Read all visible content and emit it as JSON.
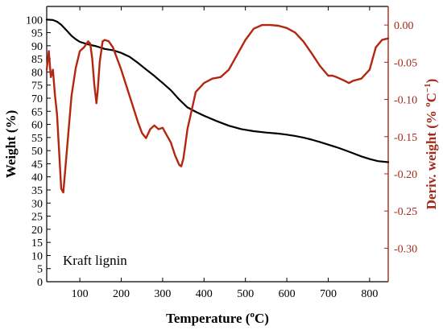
{
  "chart_data": {
    "type": "line",
    "annotation": "Kraft lignin",
    "xlabel": "Temperature (",
    "xlabel_sup": "o",
    "xlabel_tail": "C)",
    "ylabel": "Weight (%)",
    "y2label": "Deriv. weight (% ",
    "y2label_sup": "o",
    "y2label_tail": "C",
    "y2label_sup2": "−1",
    "y2label_close": ")",
    "xlim": [
      20,
      845
    ],
    "ylim": [
      0,
      105
    ],
    "y2lim": [
      -0.345,
      0.025
    ],
    "x_ticks": [
      100,
      200,
      300,
      400,
      500,
      600,
      700,
      800
    ],
    "x_tick_labels": [
      "100",
      "200",
      "300",
      "400",
      "500",
      "600",
      "700",
      "800"
    ],
    "y_ticks": [
      0,
      5,
      10,
      15,
      20,
      25,
      30,
      35,
      40,
      45,
      50,
      55,
      60,
      65,
      70,
      75,
      80,
      85,
      90,
      95,
      100
    ],
    "y_tick_labels": [
      "0",
      "5",
      "10",
      "15",
      "20",
      "25",
      "30",
      "35",
      "40",
      "45",
      "50",
      "55",
      "60",
      "65",
      "70",
      "75",
      "80",
      "85",
      "90",
      "95",
      "100"
    ],
    "y2_ticks": [
      -0.3,
      -0.25,
      -0.2,
      -0.15,
      -0.1,
      -0.05,
      0.0
    ],
    "y2_tick_labels": [
      "-0.30",
      "-0.25",
      "-0.20",
      "-0.15",
      "-0.10",
      "-0.05",
      "0.00"
    ],
    "colors": {
      "weight": "#000000",
      "deriv": "#b32610",
      "right_axis": "#a52a1a"
    },
    "grid": false,
    "series": [
      {
        "axis": "left",
        "x": [
          20,
          35,
          45,
          55,
          70,
          80,
          90,
          100,
          120,
          140,
          160,
          180,
          200,
          220,
          240,
          260,
          280,
          300,
          320,
          340,
          360,
          380,
          400,
          430,
          460,
          490,
          520,
          550,
          580,
          600,
          620,
          640,
          660,
          680,
          700,
          720,
          740,
          760,
          780,
          800,
          820,
          845
        ],
        "y": [
          100,
          99.8,
          99.2,
          98,
          95.5,
          93.8,
          92.5,
          91.5,
          90.5,
          89.8,
          88.8,
          88.3,
          87.3,
          85.8,
          83.5,
          81,
          78.5,
          75.8,
          73,
          69.5,
          66.5,
          64.8,
          63.3,
          61.3,
          59.5,
          58.2,
          57.4,
          56.9,
          56.5,
          56.1,
          55.6,
          55,
          54.2,
          53.3,
          52.3,
          51.3,
          50.2,
          49,
          47.8,
          46.8,
          46,
          45.6
        ]
      },
      {
        "axis": "right",
        "x": [
          20,
          25,
          30,
          35,
          40,
          45,
          50,
          55,
          60,
          70,
          80,
          90,
          100,
          110,
          120,
          125,
          130,
          135,
          140,
          143,
          148,
          155,
          160,
          170,
          180,
          200,
          220,
          240,
          250,
          260,
          270,
          280,
          290,
          300,
          310,
          320,
          330,
          340,
          345,
          350,
          355,
          360,
          370,
          380,
          400,
          420,
          440,
          460,
          480,
          500,
          520,
          540,
          560,
          580,
          600,
          620,
          640,
          660,
          680,
          700,
          710,
          720,
          740,
          750,
          760,
          780,
          800,
          815,
          830,
          845
        ],
        "y": [
          -0.06,
          -0.035,
          -0.07,
          -0.06,
          -0.095,
          -0.12,
          -0.17,
          -0.22,
          -0.225,
          -0.16,
          -0.095,
          -0.058,
          -0.035,
          -0.03,
          -0.022,
          -0.025,
          -0.045,
          -0.08,
          -0.105,
          -0.09,
          -0.05,
          -0.022,
          -0.02,
          -0.022,
          -0.03,
          -0.06,
          -0.095,
          -0.13,
          -0.145,
          -0.152,
          -0.14,
          -0.135,
          -0.14,
          -0.138,
          -0.148,
          -0.158,
          -0.175,
          -0.188,
          -0.19,
          -0.18,
          -0.16,
          -0.14,
          -0.115,
          -0.09,
          -0.078,
          -0.072,
          -0.07,
          -0.06,
          -0.04,
          -0.02,
          -0.005,
          0.0,
          0.0,
          -0.001,
          -0.004,
          -0.01,
          -0.022,
          -0.038,
          -0.055,
          -0.068,
          -0.068,
          -0.07,
          -0.075,
          -0.078,
          -0.075,
          -0.072,
          -0.06,
          -0.03,
          -0.02,
          -0.018
        ]
      }
    ]
  }
}
